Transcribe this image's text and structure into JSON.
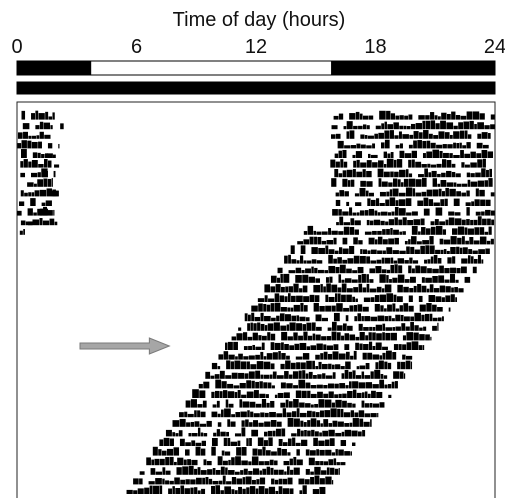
{
  "chart_data": {
    "type": "actogram",
    "xlabel": "Time of day (hours)",
    "x_ticks": [
      "0",
      "6",
      "12",
      "18",
      "24"
    ],
    "x_tick_values": [
      0,
      6,
      12,
      18,
      24
    ],
    "xlim": [
      0,
      24
    ],
    "light_dark_bars": [
      {
        "row": "upper",
        "segments": [
          {
            "start": 0,
            "end": 3.7,
            "state": "dark"
          },
          {
            "start": 3.7,
            "end": 15.8,
            "state": "light"
          },
          {
            "start": 15.8,
            "end": 24,
            "state": "dark"
          }
        ]
      },
      {
        "row": "lower",
        "segments": [
          {
            "start": 0,
            "end": 24,
            "state": "dark"
          }
        ]
      }
    ],
    "days_shown": 40,
    "activity_onsets": {
      "unit": "hour of day",
      "days_1_12": 15.9,
      "days_13_40_linear_fit": {
        "onset_at_day_13": 14.4,
        "onset_at_day_40": 5.5
      }
    },
    "activity_duration_hours": 10,
    "arrow_marker": {
      "day": 25,
      "points_at_hour": 7.8
    },
    "colors": {
      "activity": "#000000",
      "arrow": "#a6a6a6",
      "arrow_edge": "#7a7a7a",
      "light_phase": "#ffffff",
      "dark_phase": "#000000"
    }
  }
}
